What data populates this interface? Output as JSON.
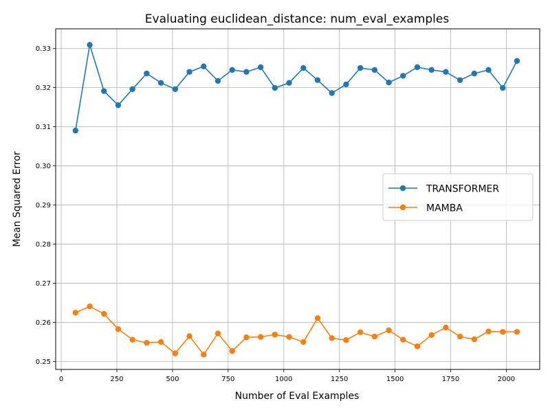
{
  "chart_data": {
    "type": "line",
    "title": "Evaluating euclidean_distance: num_eval_examples",
    "xlabel": "Number of Eval Examples",
    "ylabel": "Mean Squared Error",
    "xlim": [
      -25,
      2150
    ],
    "ylim": [
      0.248,
      0.335
    ],
    "xticks": [
      0,
      250,
      500,
      750,
      1000,
      1250,
      1500,
      1750,
      2000
    ],
    "yticks": [
      0.25,
      0.26,
      0.27,
      0.28,
      0.29,
      0.3,
      0.31,
      0.32,
      0.33
    ],
    "ytick_labels": [
      "0.25",
      "0.26",
      "0.27",
      "0.28",
      "0.29",
      "0.30",
      "0.31",
      "0.32",
      "0.33"
    ],
    "grid": true,
    "legend_position": "center-right",
    "x": [
      64,
      128,
      192,
      256,
      320,
      384,
      448,
      512,
      576,
      640,
      704,
      768,
      832,
      896,
      960,
      1024,
      1088,
      1152,
      1216,
      1280,
      1344,
      1408,
      1472,
      1536,
      1600,
      1664,
      1728,
      1792,
      1856,
      1920,
      1984,
      2048
    ],
    "series": [
      {
        "name": "TRANSFORMER",
        "color": "#1f77b4",
        "values": [
          0.309,
          0.3309,
          0.3191,
          0.3155,
          0.3196,
          0.3236,
          0.3212,
          0.3196,
          0.324,
          0.3254,
          0.3217,
          0.3245,
          0.324,
          0.3252,
          0.3199,
          0.3212,
          0.325,
          0.3219,
          0.3186,
          0.3208,
          0.325,
          0.3245,
          0.3213,
          0.323,
          0.3252,
          0.3245,
          0.324,
          0.3219,
          0.3236,
          0.3245,
          0.3199,
          0.3268
        ]
      },
      {
        "name": "MAMBA",
        "color": "#ff7f0e",
        "values": [
          0.2625,
          0.2641,
          0.2622,
          0.2583,
          0.2556,
          0.2548,
          0.255,
          0.2521,
          0.2565,
          0.2518,
          0.2572,
          0.2527,
          0.2562,
          0.2563,
          0.2569,
          0.2563,
          0.255,
          0.2611,
          0.256,
          0.2555,
          0.2575,
          0.2564,
          0.258,
          0.2556,
          0.2539,
          0.2568,
          0.2587,
          0.2564,
          0.2557,
          0.2577,
          0.2576,
          0.2576
        ]
      }
    ]
  }
}
